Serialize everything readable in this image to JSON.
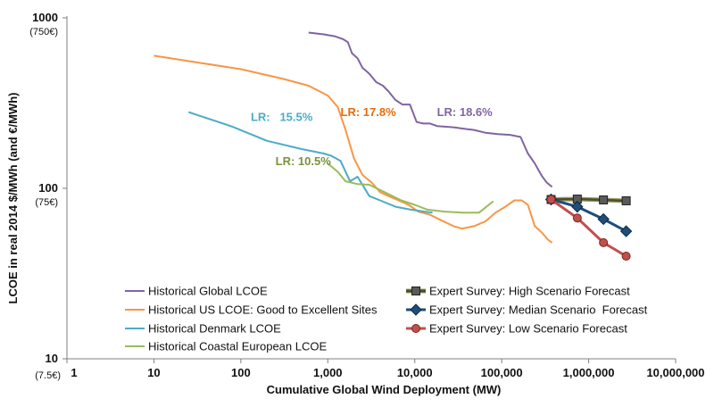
{
  "chart_data": {
    "type": "line",
    "x_scale": "log",
    "y_scale": "log",
    "xlim": [
      1,
      10000000
    ],
    "ylim": [
      10,
      1000
    ],
    "xlabel": "Cumulative Global Wind Deployment (MW)",
    "ylabel": "LCOE in real 2014 $/MWh (and €/MWh)",
    "x_ticks": [
      {
        "value": 1,
        "label": "1"
      },
      {
        "value": 10,
        "label": "10"
      },
      {
        "value": 100,
        "label": "100"
      },
      {
        "value": 1000,
        "label": "1,000"
      },
      {
        "value": 10000,
        "label": "10,000"
      },
      {
        "value": 100000,
        "label": "100,000"
      },
      {
        "value": 1000000,
        "label": "1,000,000"
      },
      {
        "value": 10000000,
        "label": "10,000,000"
      }
    ],
    "y_ticks": [
      {
        "value": 10,
        "label": "10",
        "sublabel": "(7.5€)"
      },
      {
        "value": 100,
        "label": "100",
        "sublabel": "(75€)"
      },
      {
        "value": 1000,
        "label": "1000",
        "sublabel": "(750€)"
      }
    ],
    "grid": false,
    "legend_placement": "bottom",
    "series": [
      {
        "name": "Historical Global LCOE",
        "color": "#8064a2",
        "marker": "none",
        "x": [
          600,
          900,
          1200,
          1500,
          1700,
          1900,
          2200,
          2500,
          3000,
          3600,
          4300,
          5000,
          6000,
          7200,
          8800,
          10500,
          12500,
          15000,
          18000,
          22000,
          28000,
          36000,
          48000,
          65000,
          90000,
          125000,
          165000,
          200000,
          240000,
          290000,
          330000,
          380000
        ],
        "y": [
          820,
          800,
          780,
          750,
          720,
          620,
          580,
          510,
          470,
          420,
          400,
          370,
          330,
          310,
          310,
          245,
          240,
          240,
          232,
          230,
          228,
          224,
          220,
          212,
          208,
          206,
          200,
          160,
          140,
          118,
          108,
          102
        ]
      },
      {
        "name": "Historical US LCOE: Good to Excellent Sites",
        "color": "#f79646",
        "marker": "none",
        "x": [
          10,
          30,
          100,
          300,
          600,
          1000,
          1300,
          1600,
          2000,
          2500,
          3200,
          4000,
          5000,
          6500,
          8500,
          11000,
          15000,
          20000,
          28000,
          35000,
          48000,
          65000,
          85000,
          110000,
          140000,
          170000,
          200000,
          240000,
          290000,
          340000,
          380000
        ],
        "y": [
          600,
          550,
          500,
          440,
          400,
          350,
          300,
          220,
          150,
          120,
          108,
          95,
          90,
          85,
          80,
          73,
          70,
          65,
          60,
          58,
          60,
          64,
          72,
          78,
          85,
          85,
          80,
          60,
          55,
          50,
          48
        ]
      },
      {
        "name": "Historical Denmark LCOE",
        "color": "#4bacc6",
        "marker": "none",
        "x": [
          25,
          80,
          200,
          500,
          900,
          1100,
          1400,
          1800,
          2200,
          3000,
          4000,
          6000,
          9000,
          13000,
          16000
        ],
        "y": [
          280,
          230,
          190,
          170,
          160,
          155,
          145,
          110,
          117,
          90,
          85,
          78,
          75,
          73,
          72
        ]
      },
      {
        "name": "Historical Coastal European LCOE",
        "color": "#9bbb59",
        "marker": "none",
        "x": [
          1000,
          1300,
          1600,
          2200,
          3000,
          4500,
          7000,
          10000,
          14000,
          22000,
          35000,
          55000,
          80000
        ],
        "y": [
          140,
          125,
          110,
          106,
          105,
          95,
          85,
          80,
          75,
          73,
          72,
          72,
          84
        ]
      },
      {
        "name": "Expert Survey: High Scenario Forecast",
        "color": "#4b4f2a",
        "stroke_color": "#9b9b6a",
        "marker": "square",
        "marker_fill": "#5a5a5a",
        "x": [
          370000,
          740000,
          1480000,
          2700000
        ],
        "y": [
          86,
          86.5,
          85.5,
          84.5
        ]
      },
      {
        "name": "Expert Survey: Median Scenario  Forecast",
        "color": "#1f4e79",
        "marker": "diamond",
        "marker_fill": "#1f4e79",
        "x": [
          370000,
          740000,
          1480000,
          2700000
        ],
        "y": [
          86,
          78,
          66,
          56
        ]
      },
      {
        "name": "Expert Survey: Low Scenario Forecast",
        "color": "#c0504d",
        "marker": "circle",
        "marker_fill": "#c0504d",
        "x": [
          370000,
          740000,
          1480000,
          2700000
        ],
        "y": [
          86,
          67,
          48,
          40
        ]
      }
    ],
    "annotations": [
      {
        "text": "LR: 18.6%",
        "color": "#8064a2",
        "x": 18000,
        "y": 265
      },
      {
        "text": "LR: 17.8%",
        "color": "#e46c0a",
        "x": 1400,
        "y": 265
      },
      {
        "text": "LR:   15.5%",
        "color": "#4bacc6",
        "x": 130,
        "y": 248
      },
      {
        "text": "LR: 10.5%",
        "color": "#77933c",
        "x": 250,
        "y": 137
      }
    ]
  }
}
